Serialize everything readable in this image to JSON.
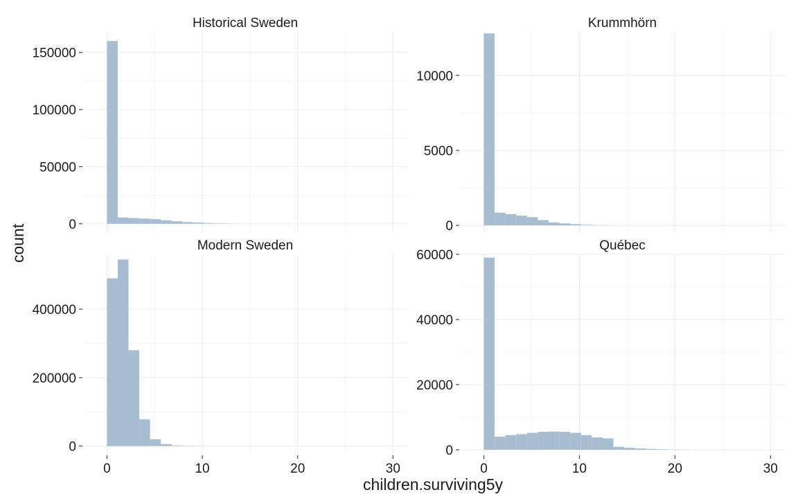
{
  "chart_data": {
    "type": "bar",
    "xlabel": "children.surviving5y",
    "ylabel": "count",
    "xlim": [
      -2.5,
      31.5
    ],
    "x_ticks": [
      "0",
      "10",
      "20",
      "30"
    ],
    "bin_width": 1.13,
    "bin_start": 0.0,
    "bar_color": "#a9bdd1",
    "panels": [
      {
        "title": "Historical Sweden",
        "ylim": [
          -8000,
          168000
        ],
        "y_ticks": [
          "0",
          "50000",
          "100000",
          "150000"
        ],
        "values": [
          160000,
          5500,
          5000,
          4500,
          4000,
          3000,
          2200,
          1500,
          1000,
          600,
          300,
          150
        ]
      },
      {
        "title": "Krummhörn",
        "ylim": [
          -500,
          12900
        ],
        "y_ticks": [
          "0",
          "5000",
          "10000"
        ],
        "values": [
          12800,
          850,
          750,
          650,
          550,
          350,
          200,
          130,
          80,
          40,
          20,
          10
        ]
      },
      {
        "title": "Modern Sweden",
        "ylim": [
          -25000,
          560000
        ],
        "y_ticks": [
          "0",
          "200000",
          "400000"
        ],
        "values": [
          490000,
          545000,
          280000,
          78000,
          20000,
          6000,
          2000,
          800,
          300
        ]
      },
      {
        "title": "Québec",
        "ylim": [
          -1500,
          60000
        ],
        "y_ticks": [
          "0",
          "20000",
          "40000",
          "60000"
        ],
        "values": [
          59000,
          4000,
          4500,
          4800,
          5200,
          5500,
          5600,
          5500,
          5200,
          4500,
          3800,
          3500,
          900,
          600,
          400,
          250,
          150,
          80,
          40
        ]
      }
    ]
  }
}
